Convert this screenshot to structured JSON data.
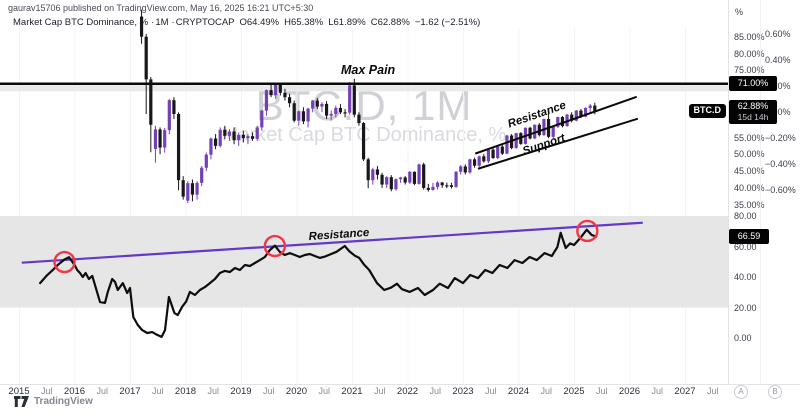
{
  "header": {
    "published_line": "gaurav15706 published on TradingView.com, May 16, 2025 16:21 UTC+5:30",
    "legend": {
      "title": "Market Cap BTC Dominance, %",
      "separator": "·",
      "interval": "1M",
      "exchange": "CRYPTOCAP",
      "open": "O64.49%",
      "high": "H65.38%",
      "low": "L61.89%",
      "close": "C62.88%",
      "change": "−1.62 (−2.51%)"
    }
  },
  "watermark": {
    "title": "BTC.D, 1M",
    "subtitle": "Market Cap BTC Dominance, %"
  },
  "annotations": {
    "max_pain": "Max Pain",
    "channel_resistance": "Resistance",
    "channel_support": "Support",
    "indicator_resistance": "Resistance"
  },
  "price_axis": {
    "unit": "%",
    "max_pain_label": "71.00%",
    "max_pain_value": 71,
    "symbol": "BTC.D",
    "last_price": 62.88,
    "last_price_label": "62.88%",
    "countdown": "15d 14h"
  },
  "percent_axis": {
    "ticks": [
      "0.60%",
      "0.40%",
      "0.20%",
      "0.00%",
      "−0.20%",
      "−0.40%",
      "−0.60%"
    ]
  },
  "indicator_axis": {
    "value_tag": "66.59"
  },
  "time_axis": {
    "jul_label": "Jul",
    "scale_buttons": [
      "A",
      "B"
    ]
  },
  "footer": {
    "brand": "TradingView"
  },
  "colors": {
    "up_candle": "#7440b5",
    "down_candle": "#17171c",
    "trendline_black": "#0a0a0a",
    "trendline_purple": "#6438c8",
    "indicator_line": "#0d0d0d",
    "circle_red": "#f23645",
    "band_gray": "#e6e6e6",
    "max_pain_zone": "#e9e9e9",
    "tag_bg": "#040404"
  },
  "chart_data": {
    "type": "candlestick",
    "title": "Market Cap BTC Dominance, %",
    "symbol": "BTC.D",
    "exchange": "CRYPTOCAP",
    "interval": "1M",
    "x_axis": {
      "tick_years": [
        2015,
        2016,
        2017,
        2018,
        2019,
        2020,
        2021,
        2022,
        2023,
        2024,
        2025,
        2026,
        2027
      ]
    },
    "price_panel": {
      "y_ticks": [
        85,
        80,
        75,
        65,
        55,
        50,
        45,
        40,
        35
      ],
      "visible_range": [
        34,
        87
      ],
      "max_pain_level": 71,
      "ohlc_current": {
        "open": 64.49,
        "high": 65.38,
        "low": 61.89,
        "close": 62.88,
        "change": -1.62,
        "change_pct": -2.51
      },
      "first_candle_month": "2017-03",
      "candles_ohlc": [
        [
          91,
          93,
          82.9,
          85
        ],
        [
          85,
          85.8,
          62,
          72.3
        ],
        [
          72.3,
          73,
          50.6,
          58.8
        ],
        [
          51.6,
          58.5,
          47.5,
          57.4
        ],
        [
          57.4,
          58,
          50,
          52
        ],
        [
          52,
          57.8,
          50.5,
          57.2
        ],
        [
          57.2,
          66.5,
          56,
          66.1
        ],
        [
          66.1,
          67,
          60.5,
          62
        ],
        [
          62,
          62.5,
          39.3,
          42.3
        ],
        [
          42.3,
          43.5,
          36.5,
          37.4
        ],
        [
          36.2,
          42,
          35.5,
          41.4
        ],
        [
          41.4,
          42.5,
          36,
          38
        ],
        [
          38,
          42,
          36.5,
          41.5
        ],
        [
          41.5,
          46.5,
          40.5,
          46
        ],
        [
          46,
          50.5,
          45,
          49.9
        ],
        [
          49.9,
          55,
          48.5,
          54.7
        ],
        [
          54.7,
          56,
          51.5,
          52.5
        ],
        [
          52.5,
          58,
          52,
          57.3
        ],
        [
          57.3,
          58.5,
          54.5,
          55.5
        ],
        [
          55.5,
          57.5,
          54,
          56.8
        ],
        [
          56.8,
          58,
          53,
          54.2
        ],
        [
          54.2,
          56.5,
          52.5,
          55.8
        ],
        [
          55.8,
          57,
          53.5,
          54.8
        ],
        [
          54.8,
          56,
          53,
          55.4
        ],
        [
          55.4,
          56.5,
          54,
          54.6
        ],
        [
          54.6,
          58.5,
          54,
          58
        ],
        [
          58,
          63.2,
          57,
          63
        ],
        [
          63,
          69.3,
          61.5,
          69.1
        ],
        [
          69.1,
          70.9,
          67,
          67.6
        ],
        [
          67.6,
          70.9,
          66.5,
          70.7
        ],
        [
          70.7,
          71.2,
          67.5,
          68.3
        ],
        [
          68.3,
          69.5,
          66,
          67
        ],
        [
          67,
          68,
          64,
          65.2
        ],
        [
          65.2,
          66,
          59.5,
          60
        ],
        [
          60,
          63,
          58.5,
          62.8
        ],
        [
          62.8,
          64,
          59,
          59.8
        ],
        [
          59.8,
          63.8,
          58,
          63.6
        ],
        [
          63.6,
          66.2,
          62.5,
          66
        ],
        [
          66,
          66.8,
          63.5,
          64.2
        ],
        [
          64.2,
          65.5,
          62.5,
          65
        ],
        [
          65,
          65.8,
          60.5,
          61.5
        ],
        [
          61.5,
          63,
          60,
          62
        ],
        [
          62,
          64.5,
          61,
          63.8
        ],
        [
          63.8,
          65,
          62,
          62.5
        ],
        [
          62.5,
          63.5,
          61,
          62.4
        ],
        [
          62.4,
          71.5,
          61.8,
          70.5
        ],
        [
          70.5,
          72.5,
          61,
          61.8
        ],
        [
          61.8,
          62.5,
          58.5,
          59.3
        ],
        [
          59.3,
          59.6,
          48,
          48.5
        ],
        [
          48.5,
          49,
          39.9,
          42.3
        ],
        [
          42.3,
          46,
          41,
          45.5
        ],
        [
          45.5,
          46.5,
          42.5,
          43.9
        ],
        [
          43.9,
          44.5,
          40,
          41
        ],
        [
          41,
          43.5,
          40,
          43.2
        ],
        [
          43.2,
          43.8,
          39,
          39.6
        ],
        [
          39.6,
          42.8,
          39.2,
          42.6
        ],
        [
          42.6,
          43.3,
          41.5,
          43.1
        ],
        [
          43.1,
          43.5,
          41,
          41.6
        ],
        [
          41.6,
          45,
          41.2,
          44.8
        ],
        [
          44.8,
          44.9,
          40.8,
          41.2
        ],
        [
          41.2,
          47.2,
          41,
          47
        ],
        [
          47,
          47.5,
          39.5,
          40
        ],
        [
          40,
          41.2,
          38.9,
          39.4
        ],
        [
          39.4,
          41.5,
          39.2,
          40.3
        ],
        [
          40.3,
          42,
          39.5,
          41.6
        ],
        [
          41.6,
          41.8,
          40,
          40.8
        ],
        [
          40.8,
          41.6,
          39.9,
          40.5
        ],
        [
          40.8,
          41.5,
          39.8,
          40.3
        ],
        [
          40.3,
          45,
          40,
          44.8
        ],
        [
          44.8,
          46.8,
          44,
          46.4
        ],
        [
          46.4,
          47,
          44,
          44.6
        ],
        [
          44.6,
          48.7,
          44.2,
          48.5
        ],
        [
          48.5,
          49,
          46,
          46.6
        ],
        [
          46.6,
          49.6,
          46.2,
          49.4
        ],
        [
          49.4,
          50.1,
          47.5,
          47.9
        ],
        [
          47.9,
          51.6,
          47.4,
          51.4
        ],
        [
          51.4,
          51.8,
          48.6,
          48.9
        ],
        [
          48.9,
          52.5,
          48.5,
          52.3
        ],
        [
          52.3,
          52.8,
          49.8,
          50.2
        ],
        [
          50.2,
          55.8,
          50,
          55.6
        ],
        [
          55.6,
          56,
          51.5,
          51.9
        ],
        [
          51.9,
          56.4,
          51.6,
          56.3
        ],
        [
          56.3,
          56.6,
          52.8,
          53.1
        ],
        [
          53.1,
          58,
          52.9,
          57.9
        ],
        [
          57.9,
          58.2,
          54.4,
          54.7
        ],
        [
          54.7,
          58.9,
          54.5,
          58.8
        ],
        [
          58.8,
          59.3,
          55.3,
          55.7
        ],
        [
          55.7,
          60.6,
          55.5,
          60.5
        ],
        [
          60.5,
          62,
          54.8,
          55.2
        ],
        [
          55.2,
          58.4,
          54.7,
          58.2
        ],
        [
          58.2,
          61.2,
          57.8,
          61.1
        ],
        [
          61.1,
          61.4,
          58,
          58.4
        ],
        [
          58.4,
          62,
          58.2,
          61.8
        ],
        [
          61.8,
          62.5,
          59.5,
          60
        ],
        [
          60,
          63.2,
          59.8,
          63
        ],
        [
          63,
          63.5,
          60.8,
          61.2
        ],
        [
          61.2,
          64,
          61,
          63.8
        ],
        [
          63.8,
          65,
          62.5,
          64.5
        ],
        [
          64.49,
          65.38,
          61.89,
          62.88
        ]
      ],
      "channel": {
        "resistance": {
          "x1": 2023.22,
          "v1": 50.2,
          "x2": 2026.13,
          "v2": 67.1
        },
        "support": {
          "x1": 2023.27,
          "v1": 45.7,
          "x2": 2026.15,
          "v2": 60.6
        }
      }
    },
    "indicator_panel": {
      "type": "line",
      "y_ticks": [
        80,
        60,
        40,
        20,
        0
      ],
      "band": [
        20,
        80
      ],
      "last_value": 66.59,
      "resistance_line": {
        "x1": 2015.05,
        "v1": 49.4,
        "x2": 2026.24,
        "v2": 75.6
      },
      "circle_marks": [
        {
          "year": 2015.82,
          "value": 49.8
        },
        {
          "year": 2019.61,
          "value": 60.3
        },
        {
          "year": 2025.24,
          "value": 70.2
        }
      ],
      "points": [
        [
          2015.38,
          36
        ],
        [
          2015.5,
          41
        ],
        [
          2015.62,
          45
        ],
        [
          2015.7,
          48
        ],
        [
          2015.82,
          51.5
        ],
        [
          2015.9,
          53
        ],
        [
          2016.0,
          48
        ],
        [
          2016.05,
          44.5
        ],
        [
          2016.1,
          42.6
        ],
        [
          2016.15,
          40
        ],
        [
          2016.2,
          42.6
        ],
        [
          2016.26,
          38.7
        ],
        [
          2016.32,
          40.7
        ],
        [
          2016.46,
          23.6
        ],
        [
          2016.55,
          23
        ],
        [
          2016.6,
          30.2
        ],
        [
          2016.68,
          38.7
        ],
        [
          2016.73,
          36.8
        ],
        [
          2016.78,
          31.5
        ],
        [
          2016.87,
          36
        ],
        [
          2016.95,
          29.5
        ],
        [
          2017.0,
          32.8
        ],
        [
          2017.06,
          13.8
        ],
        [
          2017.14,
          8.5
        ],
        [
          2017.22,
          5.2
        ],
        [
          2017.31,
          3.3
        ],
        [
          2017.4,
          3.9
        ],
        [
          2017.49,
          2
        ],
        [
          2017.57,
          0.7
        ],
        [
          2017.63,
          5.2
        ],
        [
          2017.7,
          26.9
        ],
        [
          2017.8,
          16.4
        ],
        [
          2017.86,
          15
        ],
        [
          2017.94,
          20.5
        ],
        [
          2018.01,
          23.9
        ],
        [
          2018.08,
          30.2
        ],
        [
          2018.17,
          28.2
        ],
        [
          2018.26,
          31.5
        ],
        [
          2018.35,
          33.4
        ],
        [
          2018.44,
          36
        ],
        [
          2018.53,
          38.7
        ],
        [
          2018.62,
          42.6
        ],
        [
          2018.71,
          44
        ],
        [
          2018.8,
          43.3
        ],
        [
          2018.89,
          45.9
        ],
        [
          2018.98,
          44.6
        ],
        [
          2019.07,
          47.9
        ],
        [
          2019.16,
          47.2
        ],
        [
          2019.25,
          49.2
        ],
        [
          2019.34,
          51.1
        ],
        [
          2019.43,
          53.1
        ],
        [
          2019.52,
          57.7
        ],
        [
          2019.61,
          60.5
        ],
        [
          2019.7,
          56.4
        ],
        [
          2019.79,
          54.4
        ],
        [
          2019.88,
          55.7
        ],
        [
          2019.97,
          54.4
        ],
        [
          2020.06,
          53.1
        ],
        [
          2020.15,
          54.4
        ],
        [
          2020.24,
          55.1
        ],
        [
          2020.33,
          53.8
        ],
        [
          2020.42,
          52.5
        ],
        [
          2020.52,
          53.5
        ],
        [
          2020.62,
          55
        ],
        [
          2020.72,
          56.5
        ],
        [
          2020.87,
          60.3
        ],
        [
          2020.95,
          57
        ],
        [
          2021.05,
          54
        ],
        [
          2021.13,
          52.5
        ],
        [
          2021.22,
          48
        ],
        [
          2021.31,
          44.6
        ],
        [
          2021.45,
          36
        ],
        [
          2021.58,
          31.5
        ],
        [
          2021.7,
          33
        ],
        [
          2021.81,
          35.6
        ],
        [
          2021.9,
          32
        ],
        [
          2022.04,
          30.2
        ],
        [
          2022.19,
          32.8
        ],
        [
          2022.31,
          28.2
        ],
        [
          2022.46,
          31.5
        ],
        [
          2022.58,
          35.6
        ],
        [
          2022.73,
          32.8
        ],
        [
          2022.85,
          39.3
        ],
        [
          2023.0,
          36
        ],
        [
          2023.13,
          41.3
        ],
        [
          2023.27,
          39.3
        ],
        [
          2023.4,
          44.6
        ],
        [
          2023.53,
          42.6
        ],
        [
          2023.66,
          47.9
        ],
        [
          2023.8,
          45.9
        ],
        [
          2023.93,
          51.1
        ],
        [
          2024.07,
          49.2
        ],
        [
          2024.2,
          53.1
        ],
        [
          2024.33,
          51.1
        ],
        [
          2024.47,
          55.7
        ],
        [
          2024.6,
          53.8
        ],
        [
          2024.7,
          59.7
        ],
        [
          2024.76,
          69
        ],
        [
          2024.85,
          59
        ],
        [
          2024.93,
          62
        ],
        [
          2025.0,
          61
        ],
        [
          2025.1,
          65
        ],
        [
          2025.23,
          71
        ],
        [
          2025.32,
          67.5
        ],
        [
          2025.4,
          66.59
        ]
      ]
    }
  }
}
